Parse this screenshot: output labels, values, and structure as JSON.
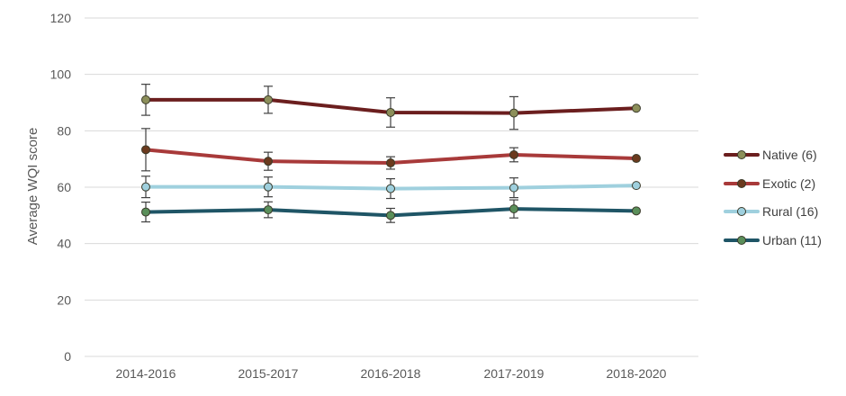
{
  "chart_data": {
    "type": "line",
    "title": "",
    "xlabel": "",
    "ylabel": "Average WQI score",
    "ylim": [
      0,
      120
    ],
    "yticks": [
      0,
      20,
      40,
      60,
      80,
      100,
      120
    ],
    "grid": "horizontal",
    "legend_position": "right",
    "categories": [
      "2014-2016",
      "2015-2017",
      "2016-2018",
      "2017-2019",
      "2018-2020"
    ],
    "series": [
      {
        "name": "Native (6)",
        "color": "#6b1e1e",
        "marker_fill": "#8c8f5a",
        "values": [
          91,
          91,
          86.5,
          86.3,
          88
        ],
        "error": [
          5.5,
          4.8,
          5.2,
          5.8,
          null
        ]
      },
      {
        "name": "Exotic (2)",
        "color": "#a83a3a",
        "marker_fill": "#6b3a1e",
        "values": [
          73.3,
          69.2,
          68.6,
          71.5,
          70.2
        ],
        "error": [
          7.5,
          3.2,
          2.2,
          2.5,
          null
        ]
      },
      {
        "name": "Rural (16)",
        "color": "#9fd0de",
        "marker_fill": "#9fd0de",
        "values": [
          60.1,
          60.1,
          59.5,
          59.8,
          60.6
        ],
        "error": [
          3.8,
          3.5,
          3.5,
          3.5,
          null
        ]
      },
      {
        "name": "Urban (11)",
        "color": "#1f5566",
        "marker_fill": "#5a8f5a",
        "values": [
          51.2,
          52,
          50,
          52.3,
          51.6
        ],
        "error": [
          3.5,
          2.8,
          2.5,
          3.2,
          null
        ]
      }
    ]
  }
}
